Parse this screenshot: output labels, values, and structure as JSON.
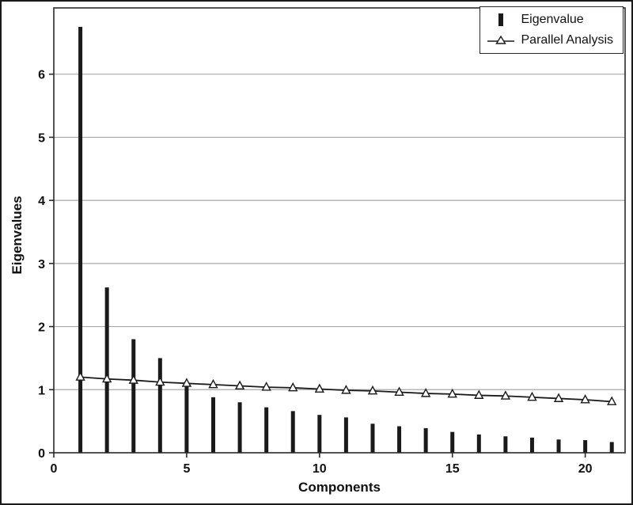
{
  "chart_data": {
    "type": "bar",
    "title": "",
    "xlabel": "Components",
    "ylabel": "Eigenvalues",
    "x": [
      1,
      2,
      3,
      4,
      5,
      6,
      7,
      8,
      9,
      10,
      11,
      12,
      13,
      14,
      15,
      16,
      17,
      18,
      19,
      20,
      21
    ],
    "series": [
      {
        "name": "Eigenvalue",
        "type": "bar",
        "values": [
          6.75,
          2.62,
          1.8,
          1.5,
          1.08,
          0.88,
          0.8,
          0.72,
          0.66,
          0.6,
          0.56,
          0.46,
          0.42,
          0.39,
          0.33,
          0.29,
          0.26,
          0.24,
          0.21,
          0.2,
          0.17
        ]
      },
      {
        "name": "Parallel Analysis",
        "type": "line",
        "values": [
          1.2,
          1.17,
          1.15,
          1.12,
          1.1,
          1.08,
          1.06,
          1.04,
          1.03,
          1.01,
          0.99,
          0.98,
          0.96,
          0.94,
          0.93,
          0.91,
          0.9,
          0.88,
          0.86,
          0.84,
          0.81
        ]
      }
    ],
    "xticks": [
      0,
      5,
      10,
      15,
      20
    ],
    "yticks": [
      0,
      1,
      2,
      3,
      4,
      5,
      6
    ],
    "xlim": [
      0,
      21.5
    ],
    "ylim": [
      0,
      7.05
    ],
    "grid": "horizontal",
    "legend_position": "top-right",
    "colors": {
      "bar": "#1a1a1a",
      "line": "#1a1a1a",
      "marker_fill": "#ffffff",
      "grid": "#a8a8a8",
      "axis": "#2a2a2a",
      "text": "#111111"
    }
  },
  "axes": {
    "x_label": "Components",
    "y_label": "Eigenvalues"
  },
  "legend": {
    "items": [
      {
        "label": "Eigenvalue"
      },
      {
        "label": "Parallel Analysis"
      }
    ]
  }
}
